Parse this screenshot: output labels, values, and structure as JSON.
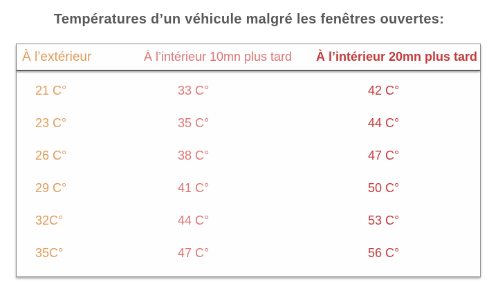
{
  "title": "Températures d’un véhicule malgré les fenêtres ouvertes:",
  "colors": {
    "title_text": "#58595b",
    "exterior_text": "#e39b59",
    "interior10_text": "#e07474",
    "interior20_text": "#c43b3c",
    "table_border": "#8c8c8c",
    "header_rule": "#5e5e5e",
    "background": "#ffffff"
  },
  "table": {
    "headers": [
      "À l’extérieur",
      "À l’intérieur 10mn plus tard",
      "À l’intérieur 20mn plus tard"
    ],
    "rows": [
      [
        "21 C°",
        "33 C°",
        "42 C°"
      ],
      [
        "23 C°",
        "35 C°",
        "44 C°"
      ],
      [
        "26 C°",
        "38 C°",
        "47 C°"
      ],
      [
        "29 C°",
        "41 C°",
        "50 C°"
      ],
      [
        "32C°",
        "44 C°",
        "53 C°"
      ],
      [
        "35C°",
        "47 C°",
        "56 C°"
      ]
    ]
  },
  "chart_data": {
    "type": "table",
    "title": "Températures d’un véhicule malgré les fenêtres ouvertes:",
    "columns": [
      "À l’extérieur",
      "À l’intérieur 10mn plus tard",
      "À l’intérieur 20mn plus tard"
    ],
    "unit": "C°",
    "series": [
      {
        "name": "À l’extérieur",
        "values": [
          21,
          23,
          26,
          29,
          32,
          35
        ]
      },
      {
        "name": "À l’intérieur 10mn plus tard",
        "values": [
          33,
          35,
          38,
          41,
          44,
          47
        ]
      },
      {
        "name": "À l’intérieur 20mn plus tard",
        "values": [
          42,
          44,
          47,
          50,
          53,
          56
        ]
      }
    ],
    "cells": [
      [
        "21 C°",
        "33 C°",
        "42 C°"
      ],
      [
        "23 C°",
        "35 C°",
        "44 C°"
      ],
      [
        "26 C°",
        "38 C°",
        "47 C°"
      ],
      [
        "29 C°",
        "41 C°",
        "50 C°"
      ],
      [
        "32C°",
        "44 C°",
        "53 C°"
      ],
      [
        "35C°",
        "47 C°",
        "56 C°"
      ]
    ],
    "layout": {
      "grid": false,
      "legend_position": "none"
    }
  }
}
